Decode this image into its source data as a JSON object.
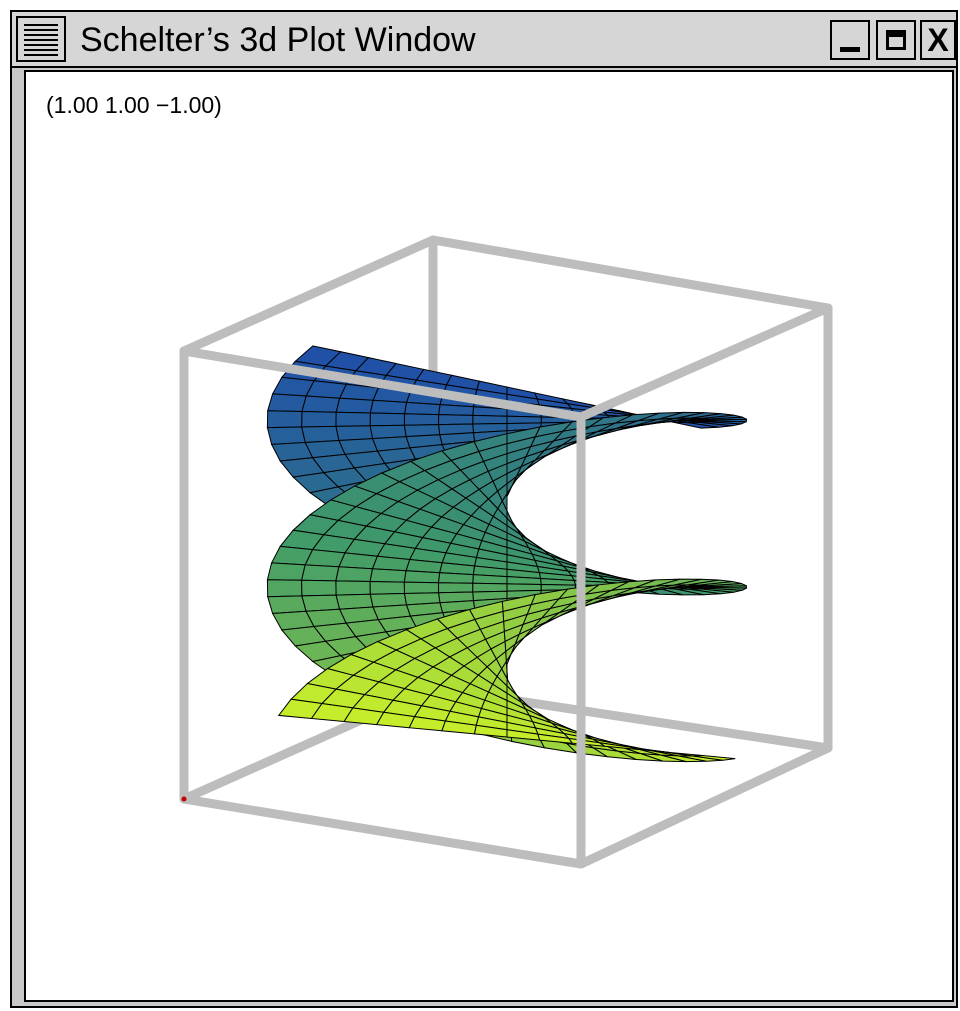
{
  "window": {
    "title": "Schelter’s 3d Plot Window",
    "minimize_icon": "minimize-icon",
    "maximize_icon": "maximize-icon",
    "close_icon": "close-icon",
    "close_glyph": "X"
  },
  "plot": {
    "coordinates_readout": "(1.00 1.00 −1.00)",
    "surface": "helicoid",
    "colors": {
      "box": "#bdbdbd",
      "mesh": "#000000",
      "top": "#1f4fa8",
      "middle": "#3f9a6a",
      "bottom": "#c8ef2a"
    }
  }
}
